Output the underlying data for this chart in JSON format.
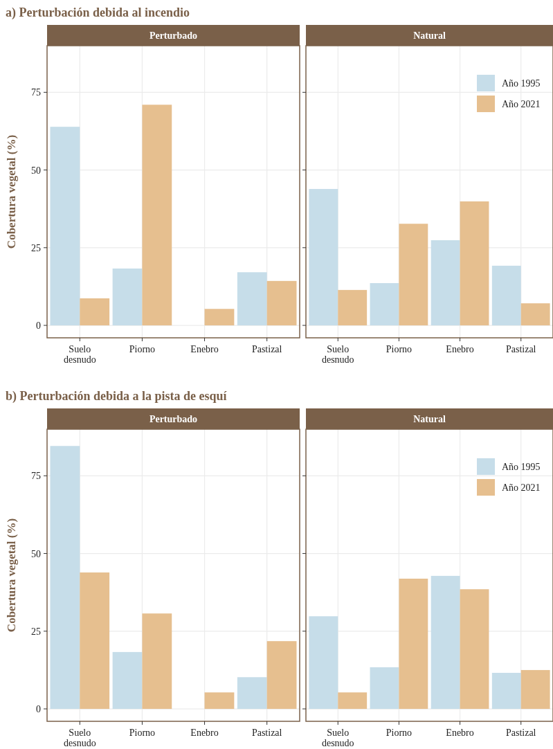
{
  "chart_data": [
    {
      "type": "bar",
      "title": "a) Perturbación debida al incendio",
      "subtitle": "Perturbado",
      "ylabel": "Cobertura vegetal (%)",
      "categories": [
        "Suelo desnudo",
        "Piorno",
        "Enebro",
        "Pastizal"
      ],
      "ylim": [
        -4,
        90
      ],
      "yticks": [
        0,
        25,
        50,
        75
      ],
      "grid": true,
      "legend": false,
      "series": [
        {
          "color": "#c6dde9",
          "values": [
            63.9,
            18.3,
            0,
            17.1
          ]
        },
        {
          "color": "#e6bf8f",
          "values": [
            8.7,
            71.0,
            5.3,
            14.3
          ]
        }
      ]
    },
    {
      "type": "bar",
      "subtitle": "Natural",
      "categories": [
        "Suelo desnudo",
        "Piorno",
        "Enebro",
        "Pastizal"
      ],
      "ylim": [
        -4,
        90
      ],
      "yticks": [
        0,
        25,
        50,
        75
      ],
      "grid": true,
      "legend": "top right",
      "tick_labels": "x",
      "series": [
        {
          "name": "Año 1995",
          "color": "#c6dde9",
          "values": [
            43.9,
            13.6,
            27.4,
            19.2
          ]
        },
        {
          "name": "Año 2021",
          "color": "#e6bf8f",
          "values": [
            11.4,
            32.7,
            39.9,
            7.1
          ]
        }
      ]
    },
    {
      "type": "bar",
      "title": "b) Perturbación debida a la pista de esquí",
      "subtitle": "Perturbado",
      "ylabel": "Cobertura vegetal (%)",
      "categories": [
        "Suelo desnudo",
        "Piorno",
        "Enebro",
        "Pastizal"
      ],
      "ylim": [
        -4,
        90
      ],
      "yticks": [
        0,
        25,
        50,
        75
      ],
      "grid": true,
      "legend": false,
      "series": [
        {
          "color": "#c6dde9",
          "values": [
            84.6,
            18.3,
            0,
            10.2
          ]
        },
        {
          "color": "#e6bf8f",
          "values": [
            43.9,
            30.7,
            5.3,
            21.8
          ]
        }
      ]
    },
    {
      "type": "bar",
      "subtitle": "Natural",
      "categories": [
        "Suelo desnudo",
        "Piorno",
        "Enebro",
        "Pastizal"
      ],
      "ylim": [
        -4,
        90
      ],
      "yticks": [
        0,
        25,
        50,
        75
      ],
      "grid": true,
      "legend": "top right",
      "tick_labels": "x",
      "series": [
        {
          "name": "Año 1995",
          "color": "#c6dde9",
          "values": [
            29.8,
            13.4,
            42.8,
            11.6
          ]
        },
        {
          "name": "Año 2021",
          "color": "#e6bf8f",
          "values": [
            5.3,
            41.9,
            38.5,
            12.5
          ]
        }
      ]
    }
  ]
}
